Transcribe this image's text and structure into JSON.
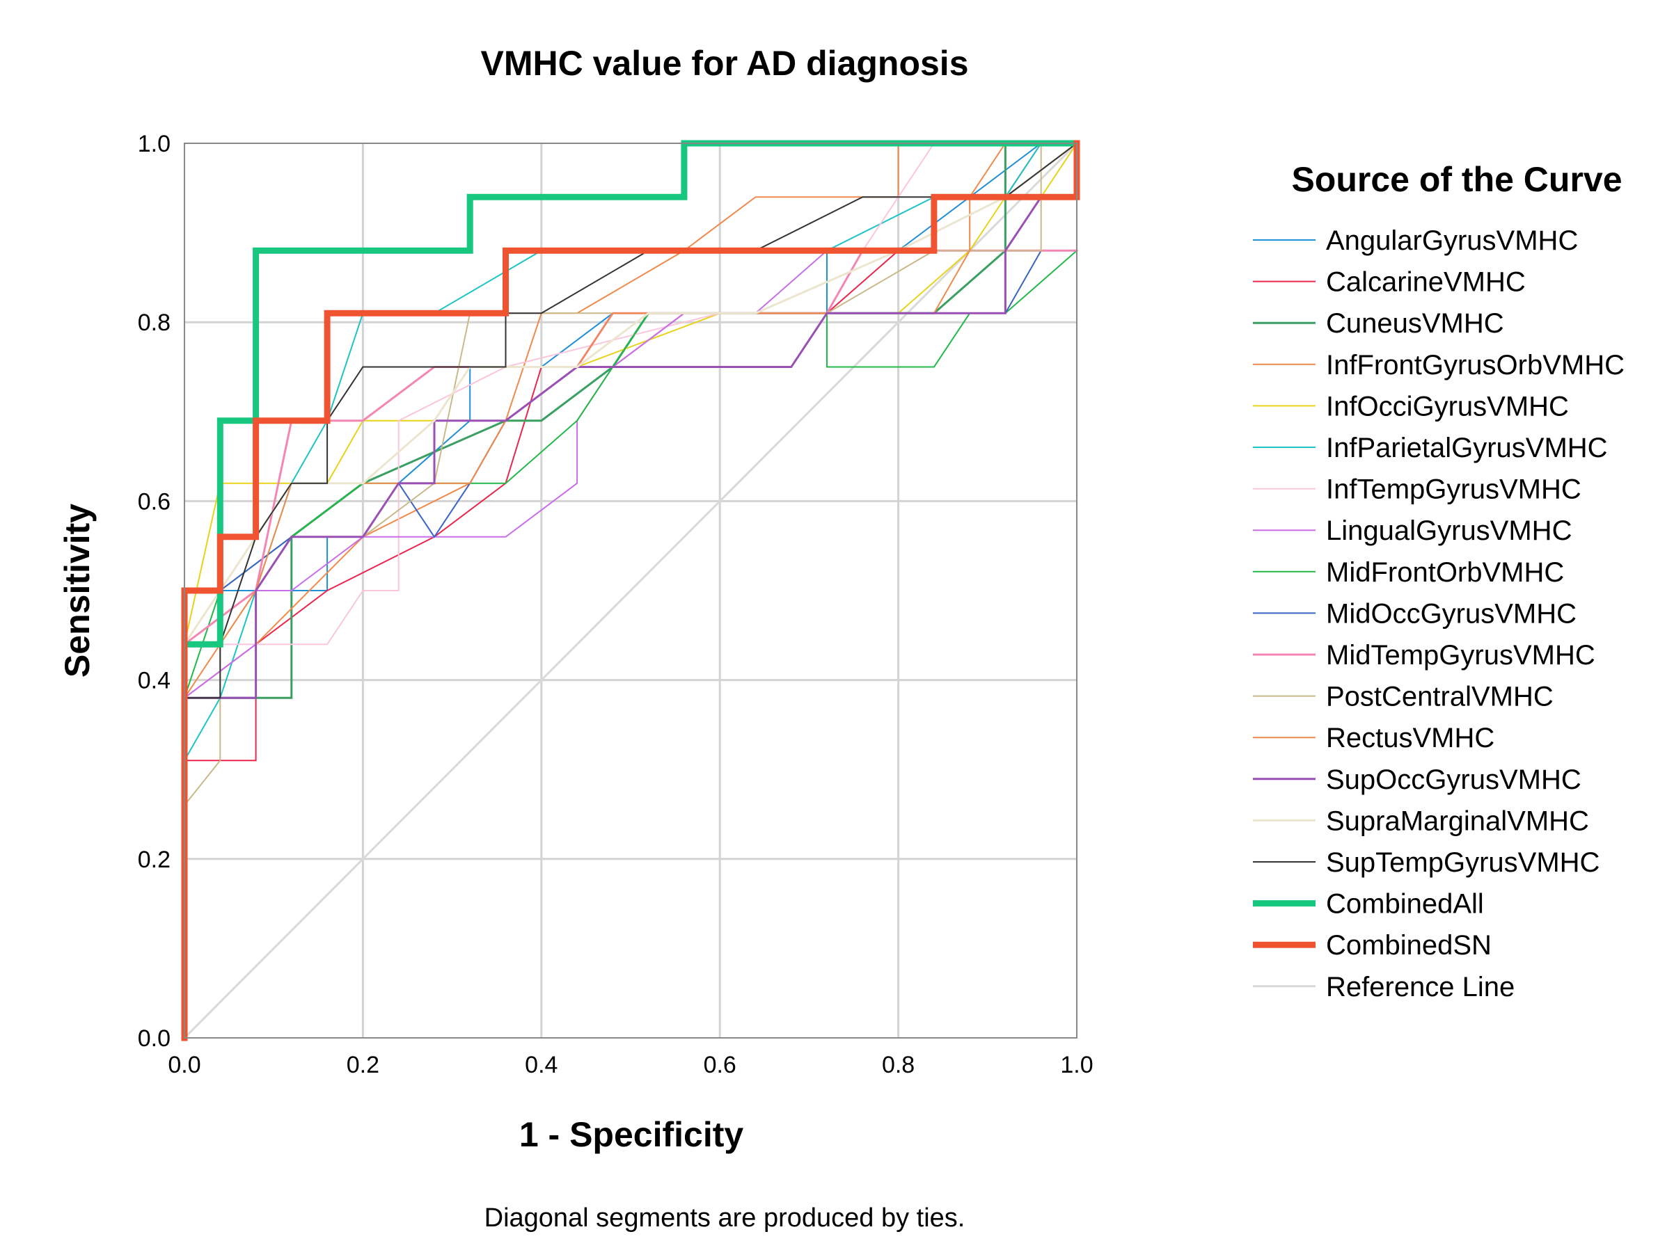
{
  "chart_data": {
    "type": "line",
    "title": "VMHC value for AD diagnosis",
    "xlabel": "1 - Specificity",
    "ylabel": "Sensitivity",
    "xlim": [
      0,
      1
    ],
    "ylim": [
      0,
      1
    ],
    "xticks": [
      "0.0",
      "0.2",
      "0.4",
      "0.6",
      "0.8",
      "1.0"
    ],
    "yticks": [
      "0.0",
      "0.2",
      "0.4",
      "0.6",
      "0.8",
      "1.0"
    ],
    "grid": true,
    "legend_title": "Source of the Curve",
    "legend_position": "right",
    "footnote": "Diagonal segments are produced by ties.",
    "series": [
      {
        "name": "AngularGyrusVMHC",
        "color": "#1f8fd6",
        "width": 2,
        "points": [
          [
            0,
            0
          ],
          [
            0,
            0.44
          ],
          [
            0.04,
            0.5
          ],
          [
            0.12,
            0.5
          ],
          [
            0.16,
            0.5
          ],
          [
            0.16,
            0.56
          ],
          [
            0.2,
            0.56
          ],
          [
            0.24,
            0.62
          ],
          [
            0.32,
            0.69
          ],
          [
            0.32,
            0.75
          ],
          [
            0.4,
            0.75
          ],
          [
            0.48,
            0.81
          ],
          [
            0.72,
            0.81
          ],
          [
            0.72,
            0.75
          ],
          [
            0.72,
            0.88
          ],
          [
            0.8,
            0.88
          ],
          [
            0.88,
            0.94
          ],
          [
            0.96,
            1
          ],
          [
            1,
            1
          ]
        ]
      },
      {
        "name": "CalcarineVMHC",
        "color": "#e8274b",
        "width": 2,
        "points": [
          [
            0,
            0
          ],
          [
            0,
            0.31
          ],
          [
            0.08,
            0.31
          ],
          [
            0.08,
            0.44
          ],
          [
            0.16,
            0.5
          ],
          [
            0.28,
            0.56
          ],
          [
            0.36,
            0.62
          ],
          [
            0.4,
            0.75
          ],
          [
            0.48,
            0.75
          ],
          [
            0.56,
            0.81
          ],
          [
            0.72,
            0.81
          ],
          [
            0.8,
            0.88
          ],
          [
            0.92,
            0.94
          ],
          [
            0.96,
            1
          ],
          [
            1,
            1
          ]
        ]
      },
      {
        "name": "CuneusVMHC",
        "color": "#3aa062",
        "width": 3,
        "points": [
          [
            0,
            0
          ],
          [
            0,
            0.38
          ],
          [
            0.12,
            0.38
          ],
          [
            0.12,
            0.56
          ],
          [
            0.2,
            0.62
          ],
          [
            0.36,
            0.69
          ],
          [
            0.4,
            0.69
          ],
          [
            0.48,
            0.75
          ],
          [
            0.52,
            0.81
          ],
          [
            0.72,
            0.81
          ],
          [
            0.84,
            0.81
          ],
          [
            0.92,
            0.88
          ],
          [
            0.92,
            1
          ],
          [
            1,
            1
          ]
        ]
      },
      {
        "name": "InfFrontGyrusOrbVMHC",
        "color": "#f08a4a",
        "width": 2,
        "points": [
          [
            0,
            0
          ],
          [
            0,
            0.38
          ],
          [
            0.08,
            0.44
          ],
          [
            0.2,
            0.56
          ],
          [
            0.32,
            0.62
          ],
          [
            0.36,
            0.69
          ],
          [
            0.4,
            0.81
          ],
          [
            0.44,
            0.81
          ],
          [
            0.56,
            0.88
          ],
          [
            0.64,
            0.94
          ],
          [
            0.8,
            0.94
          ],
          [
            0.8,
            1
          ],
          [
            1,
            1
          ]
        ]
      },
      {
        "name": "InfOcciGyrusVMHC",
        "color": "#e8d21a",
        "width": 2,
        "points": [
          [
            0,
            0
          ],
          [
            0,
            0.44
          ],
          [
            0.04,
            0.62
          ],
          [
            0.16,
            0.62
          ],
          [
            0.2,
            0.69
          ],
          [
            0.36,
            0.69
          ],
          [
            0.44,
            0.75
          ],
          [
            0.6,
            0.81
          ],
          [
            0.8,
            0.81
          ],
          [
            0.88,
            0.88
          ],
          [
            0.92,
            0.94
          ],
          [
            0.96,
            0.94
          ],
          [
            1,
            1
          ]
        ]
      },
      {
        "name": "InfParietalGyrusVMHC",
        "color": "#1cc4c4",
        "width": 2,
        "points": [
          [
            0,
            0
          ],
          [
            0,
            0.31
          ],
          [
            0.04,
            0.38
          ],
          [
            0.08,
            0.5
          ],
          [
            0.12,
            0.62
          ],
          [
            0.16,
            0.69
          ],
          [
            0.2,
            0.81
          ],
          [
            0.28,
            0.81
          ],
          [
            0.4,
            0.88
          ],
          [
            0.6,
            0.88
          ],
          [
            0.72,
            0.88
          ],
          [
            0.84,
            0.94
          ],
          [
            0.92,
            0.94
          ],
          [
            0.96,
            1
          ],
          [
            1,
            1
          ]
        ]
      },
      {
        "name": "InfTempGyrusVMHC",
        "color": "#fbc6dc",
        "width": 2,
        "points": [
          [
            0,
            0
          ],
          [
            0,
            0.44
          ],
          [
            0.16,
            0.44
          ],
          [
            0.2,
            0.5
          ],
          [
            0.24,
            0.5
          ],
          [
            0.24,
            0.69
          ],
          [
            0.36,
            0.75
          ],
          [
            0.6,
            0.81
          ],
          [
            0.72,
            0.81
          ],
          [
            0.76,
            0.88
          ],
          [
            0.8,
            0.94
          ],
          [
            0.84,
            1
          ],
          [
            1,
            1
          ]
        ]
      },
      {
        "name": "LingualGyrusVMHC",
        "color": "#c86ee8",
        "width": 2,
        "points": [
          [
            0,
            0
          ],
          [
            0,
            0.38
          ],
          [
            0.08,
            0.44
          ],
          [
            0.08,
            0.5
          ],
          [
            0.12,
            0.5
          ],
          [
            0.2,
            0.56
          ],
          [
            0.36,
            0.56
          ],
          [
            0.44,
            0.62
          ],
          [
            0.44,
            0.69
          ],
          [
            0.48,
            0.75
          ],
          [
            0.56,
            0.81
          ],
          [
            0.64,
            0.81
          ],
          [
            0.72,
            0.88
          ],
          [
            0.84,
            0.88
          ],
          [
            1,
            0.88
          ]
        ]
      },
      {
        "name": "MidFrontOrbVMHC",
        "color": "#22b84a",
        "width": 2,
        "points": [
          [
            0,
            0
          ],
          [
            0,
            0.38
          ],
          [
            0.04,
            0.5
          ],
          [
            0.12,
            0.56
          ],
          [
            0.2,
            0.62
          ],
          [
            0.36,
            0.62
          ],
          [
            0.44,
            0.69
          ],
          [
            0.52,
            0.81
          ],
          [
            0.72,
            0.81
          ],
          [
            0.72,
            0.75
          ],
          [
            0.84,
            0.75
          ],
          [
            0.88,
            0.81
          ],
          [
            0.92,
            0.81
          ],
          [
            1,
            0.88
          ]
        ]
      },
      {
        "name": "MidOccGyrusVMHC",
        "color": "#3a63c4",
        "width": 2,
        "points": [
          [
            0,
            0
          ],
          [
            0,
            0.44
          ],
          [
            0.04,
            0.5
          ],
          [
            0.12,
            0.56
          ],
          [
            0.2,
            0.56
          ],
          [
            0.24,
            0.62
          ],
          [
            0.28,
            0.56
          ],
          [
            0.32,
            0.62
          ],
          [
            0.36,
            0.69
          ],
          [
            0.44,
            0.75
          ],
          [
            0.48,
            0.81
          ],
          [
            0.72,
            0.81
          ],
          [
            0.84,
            0.81
          ],
          [
            0.92,
            0.81
          ],
          [
            0.96,
            0.88
          ],
          [
            1,
            0.88
          ]
        ]
      },
      {
        "name": "MidTempGyrusVMHC",
        "color": "#f486b4",
        "width": 3,
        "points": [
          [
            0,
            0
          ],
          [
            0,
            0.44
          ],
          [
            0.08,
            0.5
          ],
          [
            0.12,
            0.69
          ],
          [
            0.16,
            0.69
          ],
          [
            0.2,
            0.69
          ],
          [
            0.28,
            0.75
          ],
          [
            0.36,
            0.75
          ],
          [
            0.44,
            0.75
          ],
          [
            0.48,
            0.81
          ],
          [
            0.72,
            0.81
          ],
          [
            0.76,
            0.88
          ],
          [
            0.88,
            0.88
          ],
          [
            1,
            0.88
          ]
        ]
      },
      {
        "name": "PostCentralVMHC",
        "color": "#c9b98a",
        "width": 2,
        "points": [
          [
            0,
            0
          ],
          [
            0,
            0.26
          ],
          [
            0.04,
            0.31
          ],
          [
            0.04,
            0.44
          ],
          [
            0.12,
            0.56
          ],
          [
            0.2,
            0.56
          ],
          [
            0.28,
            0.62
          ],
          [
            0.32,
            0.81
          ],
          [
            0.36,
            0.81
          ],
          [
            0.48,
            0.81
          ],
          [
            0.72,
            0.81
          ],
          [
            0.84,
            0.88
          ],
          [
            0.96,
            0.88
          ],
          [
            0.96,
            1
          ],
          [
            1,
            1
          ]
        ]
      },
      {
        "name": "RectusVMHC",
        "color": "#f08a4a",
        "width": 2,
        "points": [
          [
            0,
            0
          ],
          [
            0,
            0.38
          ],
          [
            0.08,
            0.5
          ],
          [
            0.12,
            0.62
          ],
          [
            0.32,
            0.62
          ],
          [
            0.36,
            0.69
          ],
          [
            0.44,
            0.75
          ],
          [
            0.48,
            0.81
          ],
          [
            0.64,
            0.81
          ],
          [
            0.84,
            0.81
          ],
          [
            0.88,
            0.88
          ],
          [
            0.88,
            0.94
          ],
          [
            0.92,
            1
          ],
          [
            1,
            1
          ]
        ]
      },
      {
        "name": "SupOccGyrusVMHC",
        "color": "#9a4fb4",
        "width": 3,
        "points": [
          [
            0,
            0
          ],
          [
            0,
            0.38
          ],
          [
            0.08,
            0.38
          ],
          [
            0.08,
            0.5
          ],
          [
            0.12,
            0.56
          ],
          [
            0.2,
            0.56
          ],
          [
            0.24,
            0.62
          ],
          [
            0.28,
            0.62
          ],
          [
            0.28,
            0.69
          ],
          [
            0.36,
            0.69
          ],
          [
            0.44,
            0.75
          ],
          [
            0.68,
            0.75
          ],
          [
            0.72,
            0.81
          ],
          [
            0.92,
            0.81
          ],
          [
            0.92,
            0.88
          ],
          [
            0.96,
            0.94
          ],
          [
            1,
            0.94
          ]
        ]
      },
      {
        "name": "SupraMarginalVMHC",
        "color": "#ece6cf",
        "width": 3,
        "points": [
          [
            0,
            0
          ],
          [
            0,
            0.44
          ],
          [
            0.04,
            0.5
          ],
          [
            0.12,
            0.62
          ],
          [
            0.2,
            0.62
          ],
          [
            0.28,
            0.69
          ],
          [
            0.32,
            0.75
          ],
          [
            0.44,
            0.75
          ],
          [
            0.52,
            0.81
          ],
          [
            0.64,
            0.81
          ],
          [
            0.8,
            0.88
          ],
          [
            0.92,
            0.94
          ],
          [
            1,
            1
          ]
        ]
      },
      {
        "name": "SupTempGyrusVMHC",
        "color": "#333333",
        "width": 2,
        "points": [
          [
            0,
            0
          ],
          [
            0,
            0.38
          ],
          [
            0.04,
            0.38
          ],
          [
            0.04,
            0.44
          ],
          [
            0.08,
            0.56
          ],
          [
            0.12,
            0.62
          ],
          [
            0.16,
            0.62
          ],
          [
            0.16,
            0.69
          ],
          [
            0.2,
            0.75
          ],
          [
            0.36,
            0.75
          ],
          [
            0.36,
            0.81
          ],
          [
            0.4,
            0.81
          ],
          [
            0.52,
            0.88
          ],
          [
            0.64,
            0.88
          ],
          [
            0.76,
            0.94
          ],
          [
            0.88,
            0.94
          ],
          [
            0.92,
            0.94
          ],
          [
            1,
            1
          ]
        ]
      },
      {
        "name": "CombinedAll",
        "color": "#17c77f",
        "width": 9,
        "points": [
          [
            0,
            0
          ],
          [
            0,
            0.44
          ],
          [
            0.04,
            0.44
          ],
          [
            0.04,
            0.69
          ],
          [
            0.08,
            0.69
          ],
          [
            0.08,
            0.88
          ],
          [
            0.32,
            0.88
          ],
          [
            0.32,
            0.94
          ],
          [
            0.56,
            0.94
          ],
          [
            0.56,
            1
          ],
          [
            1,
            1
          ]
        ]
      },
      {
        "name": "CombinedSN",
        "color": "#ef5330",
        "width": 9,
        "points": [
          [
            0,
            0
          ],
          [
            0,
            0.5
          ],
          [
            0.04,
            0.5
          ],
          [
            0.04,
            0.56
          ],
          [
            0.08,
            0.56
          ],
          [
            0.08,
            0.69
          ],
          [
            0.16,
            0.69
          ],
          [
            0.16,
            0.81
          ],
          [
            0.36,
            0.81
          ],
          [
            0.36,
            0.88
          ],
          [
            0.84,
            0.88
          ],
          [
            0.84,
            0.94
          ],
          [
            1,
            0.94
          ],
          [
            1,
            1
          ]
        ]
      },
      {
        "name": "Reference Line",
        "color": "#d9d9d9",
        "width": 3,
        "points": [
          [
            0,
            0
          ],
          [
            1,
            1
          ]
        ]
      }
    ]
  }
}
